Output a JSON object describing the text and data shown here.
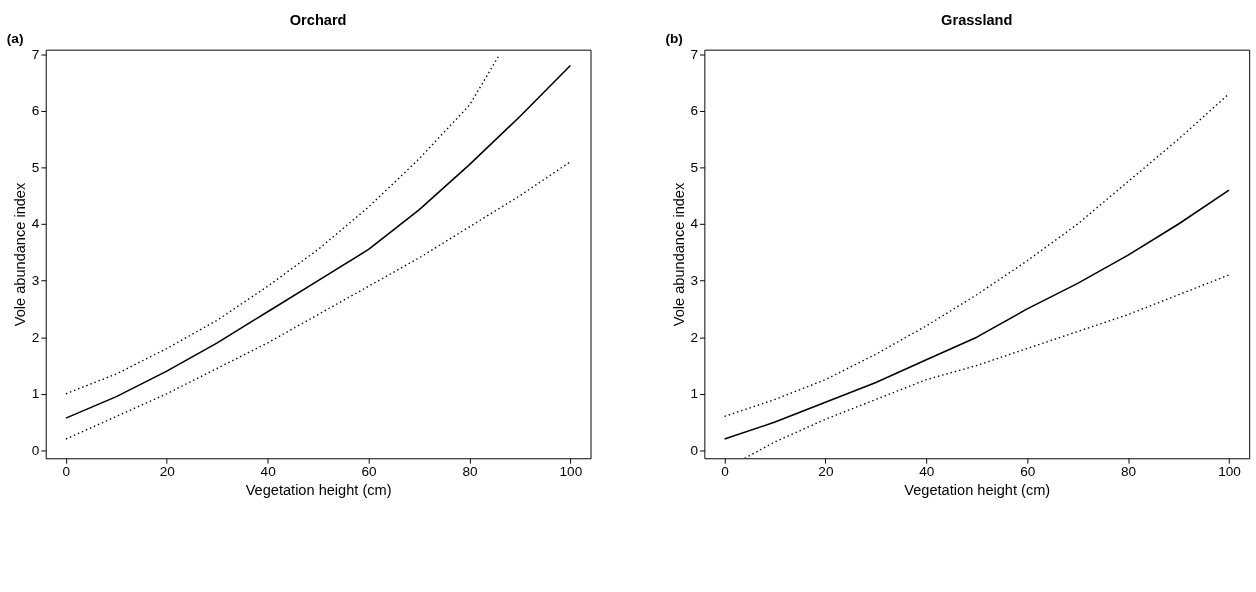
{
  "chart_data": [
    {
      "type": "line",
      "title": "Orchard",
      "annotations": [
        "(a)"
      ],
      "xlabel": "Vegetation height (cm)",
      "ylabel": "Vole abundance index",
      "xlim": [
        -4,
        104
      ],
      "ylim": [
        -0.14,
        7.08
      ],
      "xticks": [
        0,
        20,
        40,
        60,
        80,
        100
      ],
      "yticks": [
        0,
        1,
        2,
        3,
        4,
        5,
        6,
        7
      ],
      "grid": false,
      "marker": "none",
      "series": [
        {
          "color": "#000000",
          "line_style": "solid",
          "x": [
            0,
            10,
            20,
            30,
            40,
            50,
            60,
            70,
            80,
            90,
            100
          ],
          "values": [
            0.57,
            0.95,
            1.4,
            1.9,
            2.45,
            3.0,
            3.55,
            4.25,
            5.05,
            5.9,
            6.8
          ]
        },
        {
          "color": "#000000",
          "line_style": "dotted",
          "x": [
            0,
            10,
            20,
            30,
            40,
            50,
            60,
            70,
            80,
            86
          ],
          "values": [
            1.0,
            1.35,
            1.8,
            2.3,
            2.9,
            3.55,
            4.3,
            5.15,
            6.1,
            7.0
          ]
        },
        {
          "color": "#000000",
          "line_style": "dotted",
          "x": [
            0,
            10,
            20,
            30,
            40,
            50,
            60,
            70,
            80,
            90,
            100
          ],
          "values": [
            0.2,
            0.6,
            1.0,
            1.45,
            1.9,
            2.4,
            2.9,
            3.4,
            3.95,
            4.5,
            5.1
          ]
        }
      ]
    },
    {
      "type": "line",
      "title": "Grassland",
      "annotations": [
        "(b)"
      ],
      "xlabel": "Vegetation height (cm)",
      "ylabel": "Vole abundance index",
      "xlim": [
        -4,
        104
      ],
      "ylim": [
        -0.14,
        7.08
      ],
      "xticks": [
        0,
        20,
        40,
        60,
        80,
        100
      ],
      "yticks": [
        0,
        1,
        2,
        3,
        4,
        5,
        6,
        7
      ],
      "grid": false,
      "marker": "none",
      "series": [
        {
          "color": "#000000",
          "line_style": "solid",
          "x": [
            0,
            10,
            20,
            30,
            40,
            50,
            60,
            70,
            80,
            90,
            100
          ],
          "values": [
            0.2,
            0.5,
            0.85,
            1.2,
            1.6,
            2.0,
            2.5,
            2.95,
            3.45,
            4.0,
            4.6
          ]
        },
        {
          "color": "#000000",
          "line_style": "dotted",
          "x": [
            0,
            10,
            20,
            30,
            40,
            50,
            60,
            70,
            80,
            90,
            100
          ],
          "values": [
            0.6,
            0.9,
            1.25,
            1.7,
            2.2,
            2.75,
            3.35,
            4.0,
            4.75,
            5.5,
            6.3
          ]
        },
        {
          "color": "#000000",
          "line_style": "dotted",
          "x": [
            4,
            10,
            20,
            30,
            40,
            50,
            60,
            70,
            80,
            90,
            100
          ],
          "values": [
            -0.14,
            0.15,
            0.55,
            0.9,
            1.25,
            1.5,
            1.8,
            2.1,
            2.4,
            2.75,
            3.1
          ]
        }
      ]
    }
  ]
}
